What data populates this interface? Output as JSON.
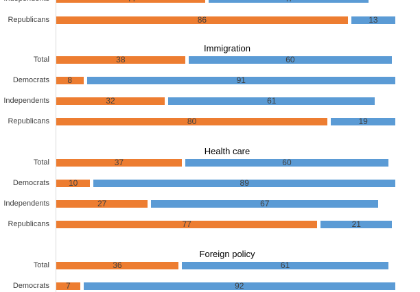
{
  "chart_data": {
    "type": "bar",
    "orientation": "horizontal",
    "colors": {
      "disapprove": "#ED7D31",
      "approve": "#5B9BD5"
    },
    "sections": [
      {
        "title": "",
        "rows": [
          {
            "label": "Independents",
            "orange": 44,
            "blue": 47
          },
          {
            "label": "Republicans",
            "orange": 86,
            "blue": 13
          }
        ]
      },
      {
        "title": "Immigration",
        "rows": [
          {
            "label": "Total",
            "orange": 38,
            "blue": 60
          },
          {
            "label": "Democrats",
            "orange": 8,
            "blue": 91
          },
          {
            "label": "Independents",
            "orange": 32,
            "blue": 61
          },
          {
            "label": "Republicans",
            "orange": 80,
            "blue": 19
          }
        ]
      },
      {
        "title": "Health care",
        "rows": [
          {
            "label": "Total",
            "orange": 37,
            "blue": 60
          },
          {
            "label": "Democrats",
            "orange": 10,
            "blue": 89
          },
          {
            "label": "Independents",
            "orange": 27,
            "blue": 67
          },
          {
            "label": "Republicans",
            "orange": 77,
            "blue": 21
          }
        ]
      },
      {
        "title": "Foreign policy",
        "rows": [
          {
            "label": "Total",
            "orange": 36,
            "blue": 61
          },
          {
            "label": "Democrats",
            "orange": 7,
            "blue": 92
          }
        ]
      }
    ]
  }
}
